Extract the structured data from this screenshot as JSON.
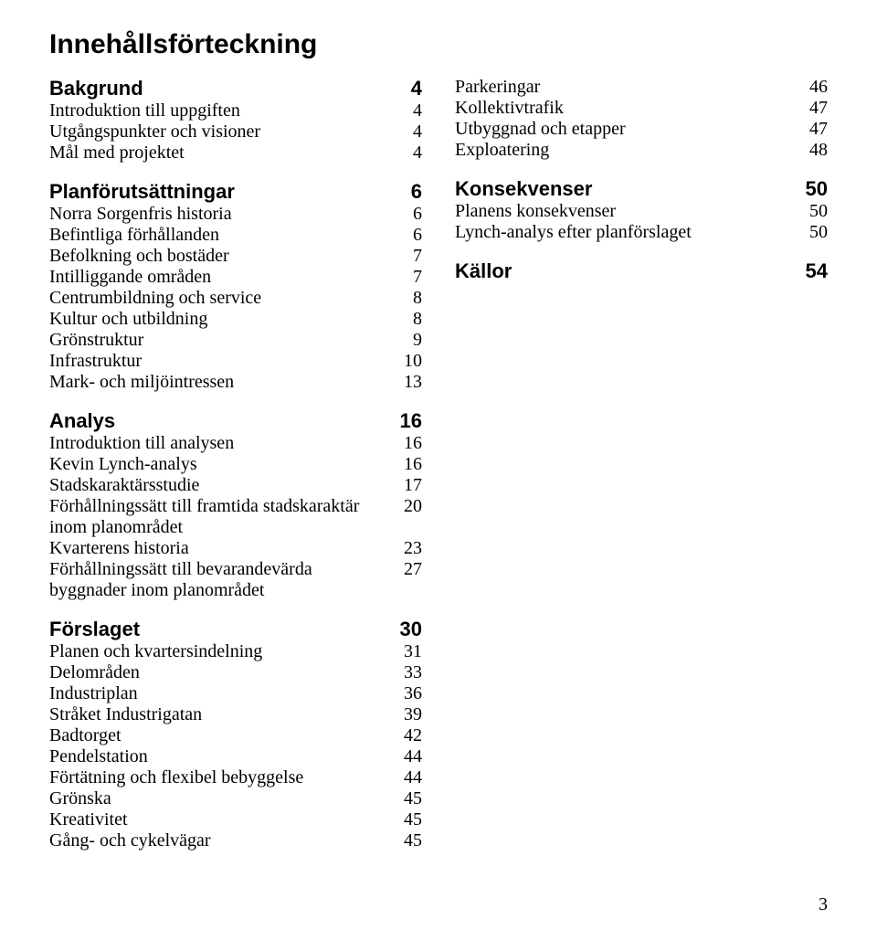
{
  "title": "Innehållsförteckning",
  "footer_page": "3",
  "left": [
    {
      "heading": {
        "label": "Bakgrund",
        "page": "4"
      },
      "entries": [
        {
          "label": "Introduktion till uppgiften",
          "page": "4"
        },
        {
          "label": "Utgångspunkter och visioner",
          "page": "4"
        },
        {
          "label": "Mål med projektet",
          "page": "4"
        }
      ]
    },
    {
      "heading": {
        "label": "Planförutsättningar",
        "page": "6"
      },
      "entries": [
        {
          "label": "Norra Sorgenfris historia",
          "page": "6"
        },
        {
          "label": "Befintliga förhållanden",
          "page": "6"
        },
        {
          "label": "Befolkning och bostäder",
          "page": "7"
        },
        {
          "label": "Intilliggande områden",
          "page": "7"
        },
        {
          "label": "Centrumbildning och service",
          "page": "8"
        },
        {
          "label": "Kultur och utbildning",
          "page": "8"
        },
        {
          "label": "Grönstruktur",
          "page": "9"
        },
        {
          "label": "Infrastruktur",
          "page": "10"
        },
        {
          "label": "Mark- och miljöintressen",
          "page": "13"
        }
      ]
    },
    {
      "heading": {
        "label": "Analys",
        "page": "16"
      },
      "entries": [
        {
          "label": "Introduktion till analysen",
          "page": "16"
        },
        {
          "label": "Kevin Lynch-analys",
          "page": "16"
        },
        {
          "label": "Stadskaraktärsstudie",
          "page": "17"
        },
        {
          "label": "Förhållningssätt till framtida stadskaraktär inom planområdet",
          "page": "20"
        },
        {
          "label": "Kvarterens historia",
          "page": "23"
        },
        {
          "label": "Förhållningssätt till bevarandevärda byggnader inom planområdet",
          "page": "27"
        }
      ]
    },
    {
      "heading": {
        "label": "Förslaget",
        "page": "30"
      },
      "entries": [
        {
          "label": "Planen och kvartersindelning",
          "page": "31"
        },
        {
          "label": "Delområden",
          "page": "33"
        },
        {
          "label": "Industriplan",
          "page": "36"
        },
        {
          "label": "Stråket Industrigatan",
          "page": "39"
        },
        {
          "label": "Badtorget",
          "page": "42"
        },
        {
          "label": "Pendelstation",
          "page": "44"
        },
        {
          "label": "Förtätning och flexibel bebyggelse",
          "page": "44"
        },
        {
          "label": "Grönska",
          "page": "45"
        },
        {
          "label": "Kreativitet",
          "page": "45"
        },
        {
          "label": "Gång- och cykelvägar",
          "page": "45"
        }
      ]
    }
  ],
  "right": [
    {
      "heading": null,
      "entries": [
        {
          "label": "Parkeringar",
          "page": "46"
        },
        {
          "label": "Kollektivtrafik",
          "page": "47"
        },
        {
          "label": "Utbyggnad och etapper",
          "page": "47"
        },
        {
          "label": "Exploatering",
          "page": "48"
        }
      ]
    },
    {
      "heading": {
        "label": "Konsekvenser",
        "page": "50"
      },
      "entries": [
        {
          "label": "Planens konsekvenser",
          "page": "50"
        },
        {
          "label": "Lynch-analys efter planförslaget",
          "page": "50"
        }
      ]
    },
    {
      "heading": {
        "label": "Källor",
        "page": "54"
      },
      "entries": []
    }
  ]
}
